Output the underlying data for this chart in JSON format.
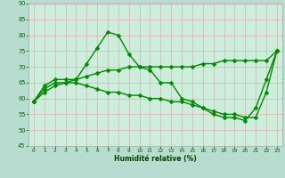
{
  "line1": {
    "x": [
      0,
      1,
      2,
      3,
      4,
      5,
      6,
      7,
      8,
      9,
      10,
      11,
      12,
      13,
      14,
      15,
      16,
      17,
      18,
      19,
      20,
      21,
      22,
      23
    ],
    "y": [
      59,
      64,
      66,
      66,
      66,
      71,
      76,
      81,
      80,
      74,
      70,
      69,
      65,
      65,
      60,
      59,
      57,
      55,
      54,
      54,
      53,
      57,
      66,
      75
    ]
  },
  "line2": {
    "x": [
      0,
      1,
      2,
      3,
      4,
      5,
      6,
      7,
      8,
      9,
      10,
      11,
      12,
      13,
      14,
      15,
      16,
      17,
      18,
      19,
      20,
      21,
      22,
      23
    ],
    "y": [
      59,
      63,
      65,
      65,
      66,
      67,
      68,
      69,
      69,
      70,
      70,
      70,
      70,
      70,
      70,
      70,
      71,
      71,
      72,
      72,
      72,
      72,
      72,
      75
    ]
  },
  "line3": {
    "x": [
      0,
      1,
      2,
      3,
      4,
      5,
      6,
      7,
      8,
      9,
      10,
      11,
      12,
      13,
      14,
      15,
      16,
      17,
      18,
      19,
      20,
      21,
      22,
      23
    ],
    "y": [
      59,
      62,
      64,
      65,
      65,
      64,
      63,
      62,
      62,
      61,
      61,
      60,
      60,
      59,
      59,
      58,
      57,
      56,
      55,
      55,
      54,
      54,
      62,
      75
    ]
  },
  "line_color": "#008800",
  "bg_color": "#b8dcd0",
  "plot_bg_color": "#cceedd",
  "grid_color": "#ee9999",
  "xlabel": "Humidité relative (%)",
  "tick_color": "#006600",
  "xlabel_color": "#004400",
  "ylim": [
    45,
    90
  ],
  "xlim": [
    -0.5,
    23.5
  ],
  "yticks": [
    45,
    50,
    55,
    60,
    65,
    70,
    75,
    80,
    85,
    90
  ],
  "xticks": [
    0,
    1,
    2,
    3,
    4,
    5,
    6,
    7,
    8,
    9,
    10,
    11,
    12,
    13,
    14,
    15,
    16,
    17,
    18,
    19,
    20,
    21,
    22,
    23
  ],
  "marker": "D",
  "markersize": 2.5,
  "linewidth": 1.0
}
